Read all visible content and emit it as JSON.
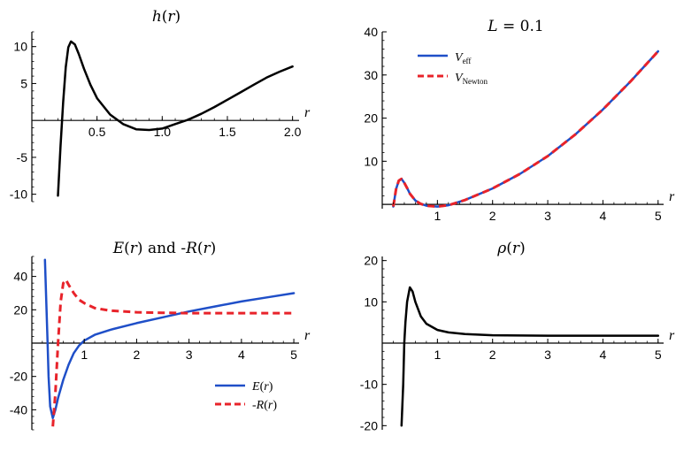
{
  "chart_data": [
    {
      "id": "h",
      "type": "line",
      "title": "h(r)",
      "xlabel": "r",
      "ylabel": "",
      "xlim": [
        0,
        2.05
      ],
      "ylim": [
        -11,
        12
      ],
      "xticks": [
        0.5,
        1.0,
        1.5,
        2.0
      ],
      "xtick_labels": [
        "0.5",
        "1.0",
        "1.5",
        "2.0"
      ],
      "yticks": [
        -10,
        -5,
        5,
        10
      ],
      "ytick_labels": [
        "-10",
        "-5",
        "5",
        "10"
      ],
      "grid": false,
      "series": [
        {
          "color": "#000000",
          "dash": "solid",
          "x": [
            0.2,
            0.22,
            0.24,
            0.26,
            0.28,
            0.3,
            0.33,
            0.36,
            0.4,
            0.45,
            0.5,
            0.6,
            0.7,
            0.8,
            0.9,
            1.0,
            1.1,
            1.2,
            1.3,
            1.4,
            1.5,
            1.6,
            1.7,
            1.8,
            1.9,
            2.0
          ],
          "y": [
            -10.2,
            -3.5,
            2.5,
            7.2,
            9.9,
            10.7,
            10.3,
            9.0,
            7.0,
            4.8,
            3.0,
            0.8,
            -0.5,
            -1.2,
            -1.3,
            -1.1,
            -0.5,
            0.1,
            0.9,
            1.8,
            2.8,
            3.8,
            4.8,
            5.8,
            6.6,
            7.3
          ]
        }
      ]
    },
    {
      "id": "veff",
      "type": "line",
      "title": "L = 0.1",
      "xlabel": "r",
      "ylabel": "",
      "xlim": [
        0,
        5.1
      ],
      "ylim": [
        -1,
        40
      ],
      "xticks": [
        1,
        2,
        3,
        4,
        5
      ],
      "xtick_labels": [
        "1",
        "2",
        "3",
        "4",
        "5"
      ],
      "yticks": [
        10,
        20,
        30,
        40
      ],
      "ytick_labels": [
        "10",
        "20",
        "30",
        "40"
      ],
      "grid": false,
      "legend": {
        "position": "top-left",
        "entries": [
          {
            "base": "V",
            "sub": "eff"
          },
          {
            "base": "V",
            "sub": "Newton"
          }
        ]
      },
      "series": [
        {
          "name": "V_eff",
          "color": "#1f4fc8",
          "dash": "solid",
          "x": [
            0.2,
            0.25,
            0.3,
            0.35,
            0.4,
            0.45,
            0.5,
            0.6,
            0.7,
            0.8,
            1.0,
            1.2,
            1.5,
            2.0,
            2.5,
            3.0,
            3.5,
            4.0,
            4.5,
            5.0
          ],
          "y": [
            -0.5,
            3.5,
            5.5,
            5.9,
            5.0,
            3.8,
            2.5,
            0.9,
            0.1,
            -0.3,
            -0.5,
            -0.2,
            1.0,
            3.7,
            7.1,
            11.2,
            16.2,
            22.0,
            28.5,
            35.5
          ]
        },
        {
          "name": "V_Newton",
          "color": "#e8232a",
          "dash": "dashed",
          "x": [
            0.2,
            0.25,
            0.3,
            0.35,
            0.4,
            0.45,
            0.5,
            0.6,
            0.7,
            0.8,
            1.0,
            1.2,
            1.5,
            2.0,
            2.5,
            3.0,
            3.5,
            4.0,
            4.5,
            5.0
          ],
          "y": [
            -0.5,
            3.5,
            5.5,
            5.9,
            5.0,
            3.8,
            2.5,
            0.9,
            0.1,
            -0.3,
            -0.5,
            -0.2,
            1.0,
            3.7,
            7.1,
            11.2,
            16.2,
            22.0,
            28.5,
            35.5
          ]
        }
      ]
    },
    {
      "id": "er",
      "type": "line",
      "title": "E(r) and -R(r)",
      "xlabel": "r",
      "ylabel": "",
      "xlim": [
        0,
        5.1
      ],
      "ylim": [
        -52,
        52
      ],
      "xticks": [
        1,
        2,
        3,
        4,
        5
      ],
      "xtick_labels": [
        "1",
        "2",
        "3",
        "4",
        "5"
      ],
      "yticks": [
        -40,
        -20,
        20,
        40
      ],
      "ytick_labels": [
        "-40",
        "-20",
        "20",
        "40"
      ],
      "grid": false,
      "legend": {
        "position": "bottom-right",
        "entries": [
          {
            "label": "E(r)"
          },
          {
            "label": "-R(r)"
          }
        ]
      },
      "series": [
        {
          "name": "E(r)",
          "color": "#1f4fc8",
          "dash": "solid",
          "x": [
            0.25,
            0.28,
            0.3,
            0.32,
            0.35,
            0.4,
            0.45,
            0.5,
            0.6,
            0.7,
            0.8,
            0.9,
            1.0,
            1.2,
            1.5,
            2.0,
            2.5,
            3.0,
            3.5,
            4.0,
            4.5,
            5.0
          ],
          "y": [
            50,
            20,
            0,
            -20,
            -38,
            -45,
            -40,
            -33,
            -22,
            -13,
            -6,
            -1.5,
            1.5,
            5.0,
            8.0,
            12.0,
            15.5,
            19.0,
            22.0,
            25.0,
            27.5,
            30.0
          ]
        },
        {
          "name": "-R(r)",
          "color": "#e8232a",
          "dash": "dashed",
          "x": [
            0.4,
            0.45,
            0.5,
            0.55,
            0.6,
            0.65,
            0.7,
            0.8,
            0.9,
            1.0,
            1.2,
            1.5,
            2.0,
            2.5,
            3.0,
            3.5,
            4.0,
            4.5,
            5.0
          ],
          "y": [
            -50,
            -30,
            0,
            25,
            36,
            38,
            35,
            30,
            26,
            24,
            21,
            19.5,
            18.5,
            18.2,
            18.0,
            18.0,
            18.0,
            18.0,
            18.0
          ]
        }
      ]
    },
    {
      "id": "rho",
      "type": "line",
      "title": "ρ(r)",
      "xlabel": "r",
      "ylabel": "",
      "xlim": [
        0,
        5.1
      ],
      "ylim": [
        -21,
        21
      ],
      "xticks": [
        1,
        2,
        3,
        4,
        5
      ],
      "xtick_labels": [
        "1",
        "2",
        "3",
        "4",
        "5"
      ],
      "yticks": [
        -20,
        -10,
        10,
        20
      ],
      "ytick_labels": [
        "-20",
        "-10",
        "10",
        "20"
      ],
      "grid": false,
      "series": [
        {
          "color": "#000000",
          "dash": "solid",
          "x": [
            0.35,
            0.38,
            0.4,
            0.42,
            0.45,
            0.5,
            0.55,
            0.6,
            0.7,
            0.8,
            1.0,
            1.2,
            1.5,
            2.0,
            2.5,
            3.0,
            4.0,
            5.0
          ],
          "y": [
            -20,
            -10,
            0,
            5,
            10,
            13.5,
            12.5,
            10,
            6.5,
            4.7,
            3.2,
            2.6,
            2.2,
            1.9,
            1.85,
            1.8,
            1.8,
            1.8
          ]
        }
      ]
    }
  ]
}
